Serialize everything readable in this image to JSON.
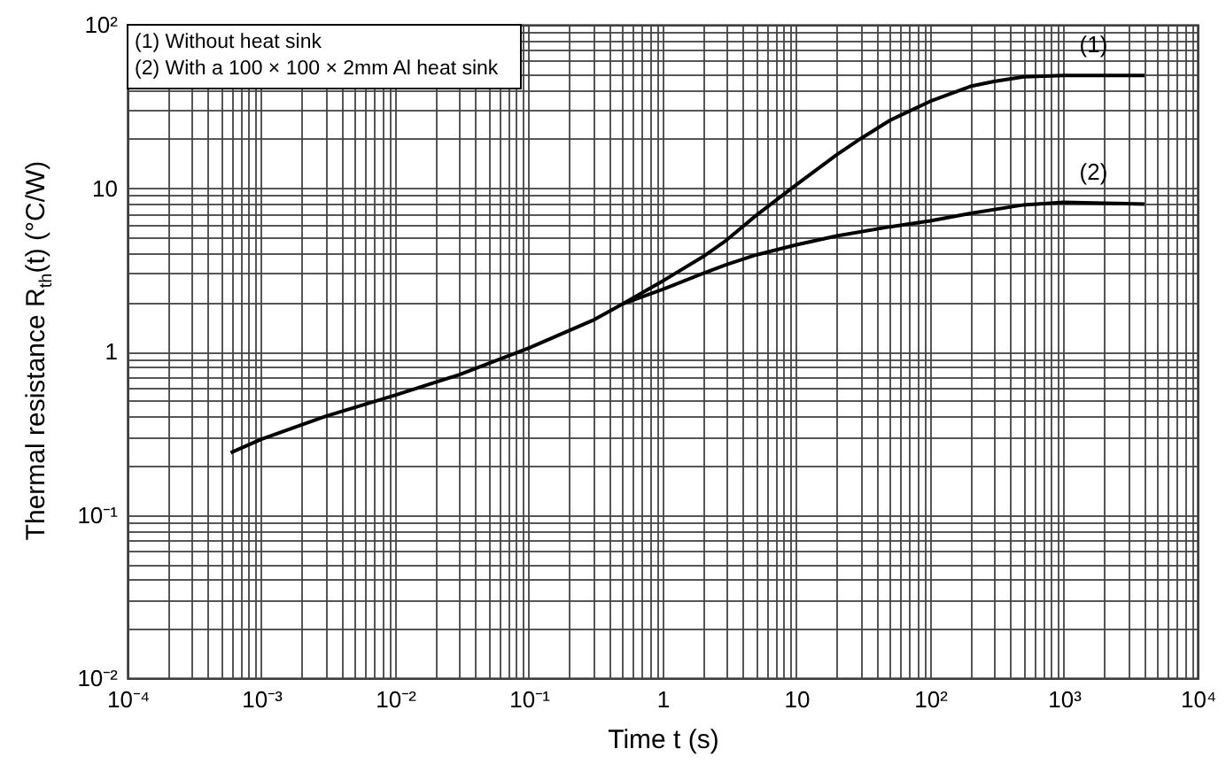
{
  "chart_data": {
    "type": "line",
    "xlabel": "Time t (s)",
    "ylabel": "Thermal resistance R$_{th}$(t) (°C/W)",
    "annotations": [
      "(1) Without heat sink",
      "(2) With a 100 × 100 × 2mm Al heat sink"
    ],
    "log": "xy",
    "grid": true,
    "marker": "none",
    "line_style": "solid",
    "xlim": [
      0.0001,
      10000
    ],
    "ylim": [
      0.01,
      100
    ],
    "xticks": [
      {
        "value": 0.0001,
        "label": "10⁻⁴"
      },
      {
        "value": 0.0002,
        "label": null
      },
      {
        "value": 0.0003,
        "label": null
      },
      {
        "value": 0.0004,
        "label": null
      },
      {
        "value": 0.0005,
        "label": null
      },
      {
        "value": 0.0006,
        "label": null
      },
      {
        "value": 0.0007,
        "label": null
      },
      {
        "value": 0.0008,
        "label": null
      },
      {
        "value": 0.0009,
        "label": null
      },
      {
        "value": 0.001,
        "label": "10⁻³"
      },
      {
        "value": 0.002,
        "label": null
      },
      {
        "value": 0.003,
        "label": null
      },
      {
        "value": 0.004,
        "label": null
      },
      {
        "value": 0.005,
        "label": null
      },
      {
        "value": 0.006,
        "label": null
      },
      {
        "value": 0.007,
        "label": null
      },
      {
        "value": 0.008,
        "label": null
      },
      {
        "value": 0.009,
        "label": null
      },
      {
        "value": 0.01,
        "label": "10⁻²"
      },
      {
        "value": 0.02,
        "label": null
      },
      {
        "value": 0.03,
        "label": null
      },
      {
        "value": 0.04,
        "label": null
      },
      {
        "value": 0.05,
        "label": null
      },
      {
        "value": 0.06,
        "label": null
      },
      {
        "value": 0.07,
        "label": null
      },
      {
        "value": 0.08,
        "label": null
      },
      {
        "value": 0.09,
        "label": null
      },
      {
        "value": 0.1,
        "label": "10⁻¹"
      },
      {
        "value": 0.2,
        "label": null
      },
      {
        "value": 0.3,
        "label": null
      },
      {
        "value": 0.4,
        "label": null
      },
      {
        "value": 0.5,
        "label": null
      },
      {
        "value": 0.6,
        "label": null
      },
      {
        "value": 0.7,
        "label": null
      },
      {
        "value": 0.8,
        "label": null
      },
      {
        "value": 0.9,
        "label": null
      },
      1,
      {
        "value": 2,
        "label": null
      },
      {
        "value": 3,
        "label": null
      },
      {
        "value": 4,
        "label": null
      },
      {
        "value": 5,
        "label": null
      },
      {
        "value": 6,
        "label": null
      },
      {
        "value": 7,
        "label": null
      },
      {
        "value": 8,
        "label": null
      },
      {
        "value": 9,
        "label": null
      },
      10,
      {
        "value": 20,
        "label": null
      },
      {
        "value": 30,
        "label": null
      },
      {
        "value": 40,
        "label": null
      },
      {
        "value": 50,
        "label": null
      },
      {
        "value": 60,
        "label": null
      },
      {
        "value": 70,
        "label": null
      },
      {
        "value": 80,
        "label": null
      },
      {
        "value": 90,
        "label": null
      },
      {
        "value": 100,
        "label": "10²"
      },
      {
        "value": 200,
        "label": null
      },
      {
        "value": 300,
        "label": null
      },
      {
        "value": 400,
        "label": null
      },
      {
        "value": 500,
        "label": null
      },
      {
        "value": 600,
        "label": null
      },
      {
        "value": 700,
        "label": null
      },
      {
        "value": 800,
        "label": null
      },
      {
        "value": 900,
        "label": null
      },
      {
        "value": 1000,
        "label": "10³"
      },
      {
        "value": 2000,
        "label": null
      },
      {
        "value": 3000,
        "label": null
      },
      {
        "value": 4000,
        "label": null
      },
      {
        "value": 5000,
        "label": null
      },
      {
        "value": 6000,
        "label": null
      },
      {
        "value": 7000,
        "label": null
      },
      {
        "value": 8000,
        "label": null
      },
      {
        "value": 9000,
        "label": null
      },
      {
        "value": 10000,
        "label": "10⁴"
      }
    ],
    "yticks": [
      {
        "value": 0.01,
        "label": "10⁻²"
      },
      {
        "value": 0.02,
        "label": null
      },
      {
        "value": 0.03,
        "label": null
      },
      {
        "value": 0.04,
        "label": null
      },
      {
        "value": 0.05,
        "label": null
      },
      {
        "value": 0.06,
        "label": null
      },
      {
        "value": 0.07,
        "label": null
      },
      {
        "value": 0.08,
        "label": null
      },
      {
        "value": 0.09,
        "label": null
      },
      {
        "value": 0.1,
        "label": "10⁻¹"
      },
      {
        "value": 0.2,
        "label": null
      },
      {
        "value": 0.3,
        "label": null
      },
      {
        "value": 0.4,
        "label": null
      },
      {
        "value": 0.5,
        "label": null
      },
      {
        "value": 0.6,
        "label": null
      },
      {
        "value": 0.7,
        "label": null
      },
      {
        "value": 0.8,
        "label": null
      },
      {
        "value": 0.9,
        "label": null
      },
      1,
      {
        "value": 2,
        "label": null
      },
      {
        "value": 3,
        "label": null
      },
      {
        "value": 4,
        "label": null
      },
      {
        "value": 5,
        "label": null
      },
      {
        "value": 6,
        "label": null
      },
      {
        "value": 7,
        "label": null
      },
      {
        "value": 8,
        "label": null
      },
      {
        "value": 9,
        "label": null
      },
      10,
      {
        "value": 20,
        "label": null
      },
      {
        "value": 30,
        "label": null
      },
      {
        "value": 40,
        "label": null
      },
      {
        "value": 50,
        "label": null
      },
      {
        "value": 60,
        "label": null
      },
      {
        "value": 70,
        "label": null
      },
      {
        "value": 80,
        "label": null
      },
      {
        "value": 90,
        "label": null
      },
      {
        "value": 100,
        "label": "10²"
      }
    ],
    "series": [
      {
        "name": "(1)",
        "color": "#000000",
        "x": [
          0.00059,
          0.001,
          0.003,
          0.01,
          0.03,
          0.1,
          0.3,
          0.5,
          1,
          2,
          3,
          5,
          10,
          20,
          30,
          50,
          100,
          200,
          300,
          500,
          1000,
          2000,
          4000
        ],
        "values": [
          0.24,
          0.29,
          0.4,
          0.54,
          0.72,
          1.05,
          1.55,
          1.95,
          2.7,
          3.8,
          4.8,
          6.8,
          10.5,
          16,
          20,
          26,
          34,
          42,
          45,
          48,
          49,
          49,
          49
        ]
      },
      {
        "name": "(2)",
        "color": "#000000",
        "x": [
          0.5,
          1,
          2,
          3,
          5,
          10,
          20,
          50,
          100,
          200,
          500,
          1000,
          2000,
          4000
        ],
        "values": [
          1.95,
          2.4,
          3.0,
          3.4,
          3.9,
          4.5,
          5.1,
          5.8,
          6.3,
          7.0,
          7.9,
          8.2,
          8.1,
          8.0
        ]
      }
    ]
  }
}
